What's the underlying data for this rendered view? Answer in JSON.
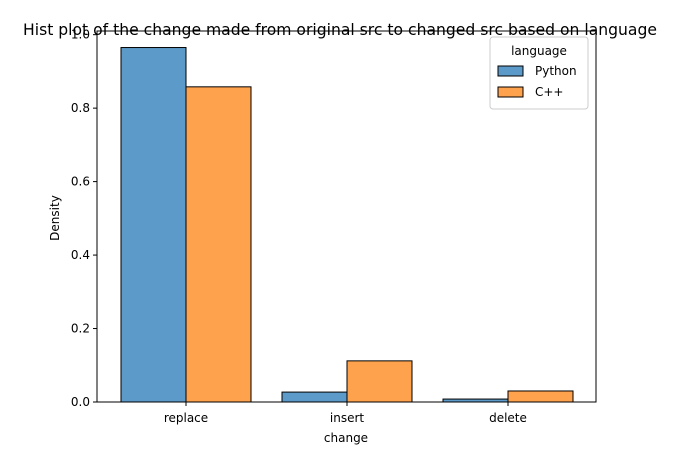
{
  "chart_data": {
    "type": "bar",
    "title": "Hist plot of the change made from original src to changed src based on language",
    "xlabel": "change",
    "ylabel": "Density",
    "categories": [
      "replace",
      "insert",
      "delete"
    ],
    "series": [
      {
        "name": "Python",
        "color": "#5b9ac9",
        "values": [
          0.965,
          0.027,
          0.008
        ]
      },
      {
        "name": "C++",
        "color": "#ffa24d",
        "values": [
          0.858,
          0.112,
          0.03
        ]
      }
    ],
    "ylim": [
      0,
      1.01
    ],
    "yticks": [
      "0.0",
      "0.2",
      "0.4",
      "0.6",
      "0.8",
      "1.0"
    ],
    "grid": false,
    "legend": {
      "title": "language",
      "placement": "top-right"
    }
  }
}
